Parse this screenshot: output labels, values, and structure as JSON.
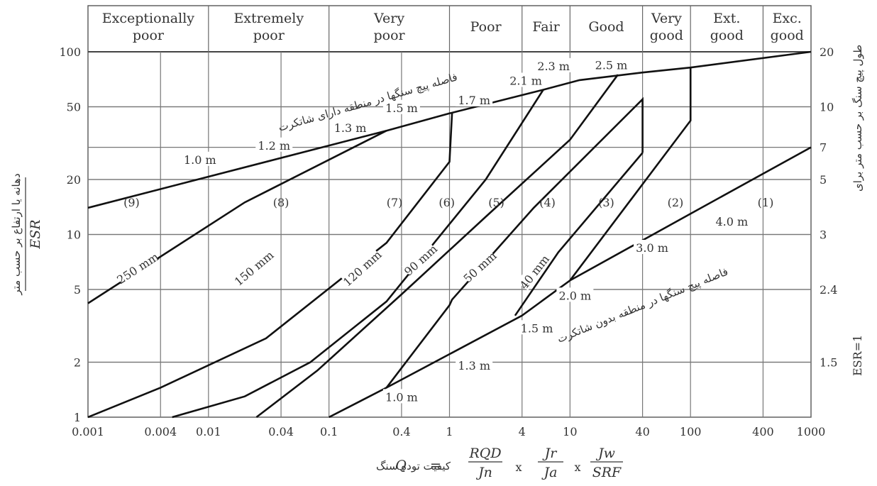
{
  "chart_data": {
    "type": "line",
    "x_scale": "log",
    "y_scale": "log",
    "xlim": [
      0.001,
      1000
    ],
    "ylim": [
      1,
      100
    ],
    "grid": true,
    "x_ticks": [
      "0.001",
      "0.004",
      "0.01",
      "0.04",
      "0.1",
      "0.4",
      "1",
      "4",
      "10",
      "40",
      "100",
      "400",
      "1000"
    ],
    "x_tick_values": [
      0.001,
      0.004,
      0.01,
      0.04,
      0.1,
      0.4,
      1,
      4,
      10,
      40,
      100,
      400,
      1000
    ],
    "y_ticks": [
      "1",
      "2",
      "5",
      "10",
      "20",
      "50",
      "100"
    ],
    "y_tick_values": [
      1,
      2,
      5,
      10,
      20,
      50,
      100
    ],
    "y2_ticks": [
      "1.5",
      "2.4",
      "3",
      "5",
      "7",
      "10",
      "20"
    ],
    "y2_tick_values": [
      1.5,
      2.4,
      3,
      5,
      7,
      10,
      20
    ],
    "y2_tick_positions": [
      2,
      5,
      10,
      20,
      30,
      50,
      100
    ],
    "ylabel_left_fa": "دهانه یا ارتفاع بر حسب متر",
    "ylabel_left_den": "ESR",
    "ylabel_right_fa": "طول پیچ سنگ بر حسب متر برای",
    "ylabel_right_en": "ESR=1",
    "xlabel": {
      "fa": "کیفیت توده سنگ",
      "Q": "Q",
      "eq": "=",
      "f1_num": "RQD",
      "f1_den": "Jn",
      "times": "x",
      "f2_num": "Jr",
      "f2_den": "Ja",
      "f3_num": "Jw",
      "f3_den": "SRF"
    },
    "classes": [
      {
        "label": [
          "Exceptionally",
          "poor"
        ],
        "x": [
          0.001,
          0.01
        ]
      },
      {
        "label": [
          "Extremely",
          "poor"
        ],
        "x": [
          0.01,
          0.1
        ]
      },
      {
        "label": [
          "Very",
          "poor"
        ],
        "x": [
          0.1,
          1
        ]
      },
      {
        "label": [
          "Poor"
        ],
        "x": [
          1,
          4
        ]
      },
      {
        "label": [
          "Fair"
        ],
        "x": [
          4,
          10
        ]
      },
      {
        "label": [
          "Good"
        ],
        "x": [
          10,
          40
        ]
      },
      {
        "label": [
          "Very",
          "good"
        ],
        "x": [
          40,
          100
        ]
      },
      {
        "label": [
          "Ext.",
          "good"
        ],
        "x": [
          100,
          400
        ]
      },
      {
        "label": [
          "Exc.",
          "good"
        ],
        "x": [
          400,
          1000
        ]
      }
    ],
    "regions": [
      {
        "label": "(9)",
        "x": 0.0023,
        "y": 15
      },
      {
        "label": "(8)",
        "x": 0.04,
        "y": 15
      },
      {
        "label": "(7)",
        "x": 0.35,
        "y": 15
      },
      {
        "label": "(6)",
        "x": 0.95,
        "y": 15
      },
      {
        "label": "(5)",
        "x": 2.45,
        "y": 15
      },
      {
        "label": "(4)",
        "x": 6.5,
        "y": 15
      },
      {
        "label": "(3)",
        "x": 20,
        "y": 15
      },
      {
        "label": "(2)",
        "x": 75,
        "y": 15
      },
      {
        "label": "(1)",
        "x": 420,
        "y": 15
      }
    ],
    "series": [
      {
        "values": [
          [
            0.001,
            14
          ],
          [
            0.3,
            37
          ],
          [
            1,
            46
          ],
          [
            6,
            62
          ],
          [
            12,
            70
          ],
          [
            40,
            77
          ],
          [
            100,
            82
          ],
          [
            1000,
            100
          ]
        ]
      },
      {
        "values": [
          [
            0.1,
            1
          ],
          [
            0.3,
            1.45
          ],
          [
            4,
            3.6
          ],
          [
            10,
            5.6
          ],
          [
            100,
            13
          ],
          [
            1000,
            30
          ]
        ]
      },
      {
        "values": [
          [
            0.001,
            4.2
          ],
          [
            0.02,
            15
          ],
          [
            0.3,
            37
          ]
        ]
      },
      {
        "values": [
          [
            0.001,
            1
          ],
          [
            0.004,
            1.45
          ],
          [
            0.03,
            2.7
          ],
          [
            0.3,
            9
          ],
          [
            1,
            25
          ],
          [
            1.05,
            46
          ]
        ]
      },
      {
        "values": [
          [
            0.005,
            1
          ],
          [
            0.02,
            1.3
          ],
          [
            0.07,
            2
          ],
          [
            0.3,
            4.3
          ],
          [
            2,
            20
          ],
          [
            6,
            62
          ]
        ]
      },
      {
        "values": [
          [
            0.025,
            1
          ],
          [
            0.08,
            1.8
          ],
          [
            0.4,
            4.7
          ],
          [
            2,
            12.5
          ],
          [
            10,
            33
          ],
          [
            25,
            75
          ]
        ]
      },
      {
        "values": [
          [
            0.3,
            1.45
          ],
          [
            1,
            4.1
          ],
          [
            1.05,
            4.4
          ],
          [
            5,
            14
          ],
          [
            40,
            55
          ],
          [
            40,
            28
          ]
        ]
      },
      {
        "values": [
          [
            3.5,
            3.6
          ],
          [
            8,
            8
          ],
          [
            40,
            28
          ]
        ]
      },
      {
        "values": [
          [
            10,
            5.6
          ],
          [
            100,
            42
          ],
          [
            100,
            82
          ]
        ]
      }
    ],
    "annotations": [
      {
        "text": "250 mm",
        "x": 0.0026,
        "y": 6.5,
        "rot": -33
      },
      {
        "text": "150 mm",
        "x": 0.024,
        "y": 6.5,
        "rot": -40
      },
      {
        "text": "120 mm",
        "x": 0.19,
        "y": 6.5,
        "rot": -42
      },
      {
        "text": "90 mm",
        "x": 0.58,
        "y": 7.2,
        "rot": -42
      },
      {
        "text": "50 mm",
        "x": 1.8,
        "y": 6.6,
        "rot": -42
      },
      {
        "text": "40 mm",
        "x": 5.1,
        "y": 6.2,
        "rot": -52
      },
      {
        "text": "1.0 m",
        "x": 0.0085,
        "y": 25.5,
        "rot": 0
      },
      {
        "text": "1.2 m",
        "x": 0.035,
        "y": 30.5,
        "rot": 0
      },
      {
        "text": "1.3 m",
        "x": 0.15,
        "y": 38,
        "rot": 0
      },
      {
        "text": "1.5 m",
        "x": 0.4,
        "y": 49,
        "rot": 0
      },
      {
        "text": "1.7 m",
        "x": 1.6,
        "y": 54,
        "rot": 0
      },
      {
        "text": "2.1 m",
        "x": 4.3,
        "y": 69,
        "rot": 0
      },
      {
        "text": "2.3 m",
        "x": 7.3,
        "y": 83,
        "rot": 0
      },
      {
        "text": "2.5 m",
        "x": 22,
        "y": 84,
        "rot": 0
      },
      {
        "text": "1.0 m",
        "x": 0.4,
        "y": 1.28,
        "rot": 0
      },
      {
        "text": "1.3 m",
        "x": 1.6,
        "y": 1.9,
        "rot": 0
      },
      {
        "text": "1.5 m",
        "x": 5.3,
        "y": 3.05,
        "rot": 0
      },
      {
        "text": "2.0 m",
        "x": 11,
        "y": 4.6,
        "rot": 0
      },
      {
        "text": "3.0 m",
        "x": 48,
        "y": 8.4,
        "rot": 0
      },
      {
        "text": "4.0 m",
        "x": 220,
        "y": 11.7,
        "rot": 0
      }
    ],
    "notes": [
      {
        "text": "فاصله پیچ سنگها در منطقه دارای شاتکرت",
        "x": 0.21,
        "y": 53,
        "rot": -16
      },
      {
        "text": "فاصله پیچ سنگها در منطقه بدون شاتکرت",
        "x": 40,
        "y": 4.1,
        "rot": -22
      }
    ]
  }
}
